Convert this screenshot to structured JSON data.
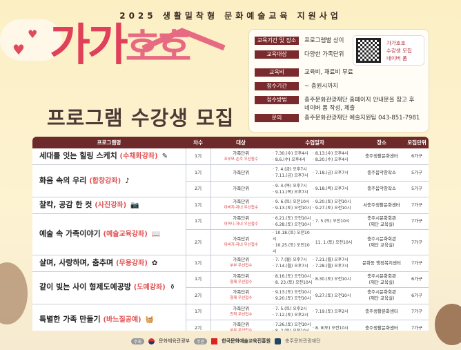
{
  "header": {
    "top_title": "2025 생활밀착형 문화예술교육 지원사업",
    "logo": "가가호호",
    "subtitle": "프로그램 수강생 모집"
  },
  "info": {
    "rows": [
      {
        "label": "교육기간 및 장소",
        "value": "프로그램별 상이"
      },
      {
        "label": "교육대상",
        "value": "다양한 가족단위"
      },
      {
        "label": "교육비",
        "value": "교육비, 재료비 무료"
      },
      {
        "label": "접수기간",
        "value": "~ 충원시까지"
      },
      {
        "label": "접수방법",
        "value": "충주문화관광재단 홈페이지 안내문을 참고 후",
        "value2": "네이버 폼 작성, 제출"
      },
      {
        "label": "문의",
        "value": "충주문화관광재단 예술지원팀 043-851-7981"
      }
    ],
    "qr": {
      "line1": "가가호호",
      "line2": "수강생 모집",
      "line3": "네이버 폼"
    }
  },
  "table": {
    "headers": [
      "프로그램명",
      "차수",
      "대상",
      "수업일자",
      "장소",
      "모집단위"
    ],
    "programs": [
      {
        "name": "세대를 잇는 힐링 스케치",
        "category": "(수채화강좌)",
        "icon": "paintbrush-icon",
        "glyph": "✎",
        "sessions": [
          {
            "round": "1기",
            "target": "가족단위",
            "priority": "조부모-손주 우선접수",
            "dates1": [
              "· 7.30.(수) 오후4시",
              "· 8.6.(수) 오후4시"
            ],
            "dates2": [
              "· 8.13.(수) 오후4시",
              "· 8.20.(수) 오후4시"
            ],
            "place": "충주생활문화센터",
            "place2": "",
            "unit": "6가구"
          }
        ]
      },
      {
        "name": "화음 속의 우리",
        "category": "(합창강좌)",
        "icon": "music-note-icon",
        "glyph": "♪",
        "sessions": [
          {
            "round": "1기",
            "target": "가족단위",
            "priority": "",
            "dates1": [
              "· 7. 4.(금) 오후7시",
              "· 7.11.(금) 오후7시"
            ],
            "dates2": [
              "· 7.18.(금) 오후7시"
            ],
            "place": "충주음악창작소",
            "place2": "",
            "unit": "5가구"
          },
          {
            "round": "2기",
            "target": "가족단위",
            "priority": "",
            "dates1": [
              "· 9. 4.(목) 오후7시",
              "· 9.11.(목) 오후7시"
            ],
            "dates2": [
              "· 9.18.(목) 오후7시"
            ],
            "place": "충주음악창작소",
            "place2": "",
            "unit": "5가구"
          }
        ]
      },
      {
        "name": "찰칵, 공감 한 컷",
        "category": "(사진강좌)",
        "icon": "camera-icon",
        "glyph": "📷",
        "sessions": [
          {
            "round": "1기",
            "target": "가족단위",
            "priority": "아버지-자녀 우선접수",
            "dates1": [
              "· 9. 6.(토) 오전10시",
              "· 9.13.(토) 오전10시"
            ],
            "dates2": [
              "· 9.20.(토) 오전10시",
              "· 9.27.(토) 오전10시"
            ],
            "place": "서충주생활문화센터",
            "place2": "",
            "unit": "7가구"
          }
        ]
      },
      {
        "name": "예술 속 가족이야기",
        "category": "(예술교육강좌)",
        "icon": "book-icon",
        "glyph": "📖",
        "sessions": [
          {
            "round": "1기",
            "target": "가족단위",
            "priority": "어머니-자녀 우선접수",
            "dates1": [
              "· 6.21.(토) 오전10시",
              "· 6.28.(토) 오전10시"
            ],
            "dates2": [
              "· 7. 5.(토) 오전10시"
            ],
            "place": "충주시문화회관",
            "place2": "(재단 교육실)",
            "unit": "7가구"
          },
          {
            "round": "2기",
            "target": "가족단위",
            "priority": "아버지-자녀 우선접수",
            "dates1": [
              "· 10.18.(토) 오전10시",
              "· 10.25.(토) 오전10시"
            ],
            "dates2": [
              "· 11. 1.(토) 오전10시"
            ],
            "place": "충주시문화회관",
            "place2": "(재단 교육실)",
            "unit": "7가구"
          }
        ]
      },
      {
        "name": "살며, 사랑하며, 춤추며",
        "category": "(무용강좌)",
        "icon": "dance-icon",
        "glyph": "✿",
        "sessions": [
          {
            "round": "1기",
            "target": "가족단위",
            "priority": "부부 우선접수",
            "dates1": [
              "· 7. 7.(월) 오후7시",
              "· 7.14.(월) 오후7시"
            ],
            "dates2": [
              "· 7.21.(월) 오후7시",
              "· 7.28.(월) 오후7시"
            ],
            "place": "문화동 행정복지센터",
            "place2": "",
            "unit": "7가구"
          }
        ]
      },
      {
        "name": "같이 빚는 사이 형제도예공방",
        "category": "(도예강좌)",
        "icon": "vase-icon",
        "glyph": "⚱",
        "sessions": [
          {
            "round": "1기",
            "target": "가족단위",
            "priority": "형제 우선접수",
            "dates1": [
              "· 8.16.(토) 오전10시",
              "· 8. 23.(토) 오전10시"
            ],
            "dates2": [
              "· 8.30.(토) 오전10시"
            ],
            "place": "충주시문화회관",
            "place2": "(재단 교육실)",
            "unit": "6가구"
          },
          {
            "round": "2기",
            "target": "가족단위",
            "priority": "형제 우선접수",
            "dates1": [
              "· 9.13.(토) 오전10시",
              "· 9.20.(토) 오전10시"
            ],
            "dates2": [
              "· 9.27.(토) 오전10시"
            ],
            "place": "충주시문화회관",
            "place2": "(재단 교육실)",
            "unit": "6가구"
          }
        ]
      },
      {
        "name": "특별한 가족 만들기",
        "category": "(바느질공예)",
        "icon": "sewing-basket-icon",
        "glyph": "🧺",
        "sessions": [
          {
            "round": "1기",
            "target": "가족단위",
            "priority": "친척 우선접수",
            "dates1": [
              "· 7. 5.(토) 오후2시",
              "· 7.12.(토) 오후2시"
            ],
            "dates2": [
              "· 7.19.(토) 오후2시"
            ],
            "place": "충주생활문화센터",
            "place2": "",
            "unit": "7가구"
          },
          {
            "round": "2기",
            "target": "가족단위",
            "priority": "부부 우선접수",
            "dates1": [
              "· 7.26.(토) 오전10시",
              "· 8. 2.(토) 오전10시"
            ],
            "dates2": [
              "· 8. 9(토) 오전10시"
            ],
            "place": "충주생활문화센터",
            "place2": "",
            "unit": "7가구"
          }
        ]
      }
    ]
  },
  "footer": {
    "host_tag": "주최",
    "host": "문화체육관광부",
    "organizer_tag": "주관",
    "organizer": "한국문화예술교육진흥원",
    "foundation": "충주문화관광재단"
  },
  "colors": {
    "header_bar": "#6e2a2a",
    "logo_pink": "#e0405a",
    "category_red": "#e05050"
  }
}
